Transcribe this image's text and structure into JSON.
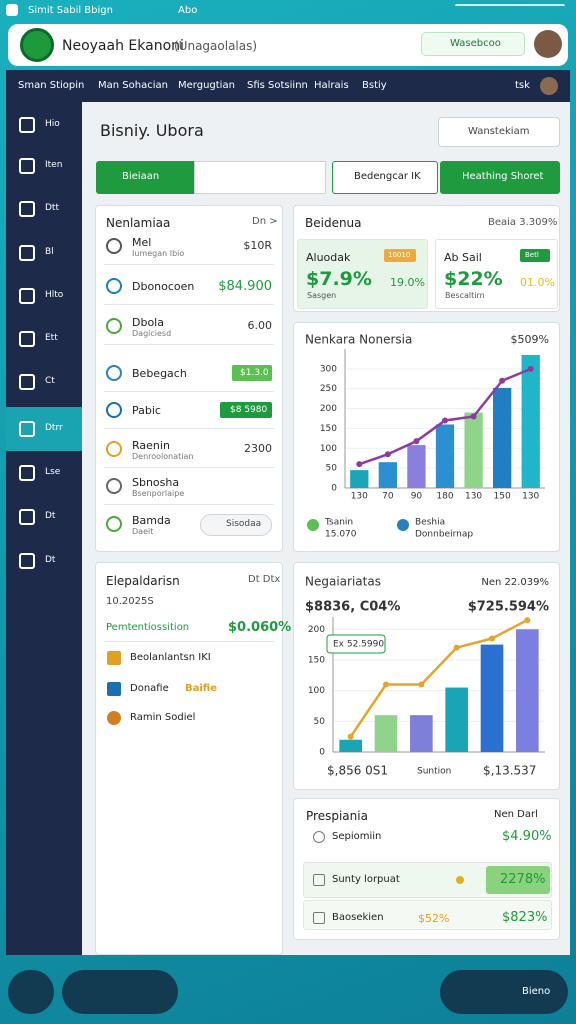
{
  "status_bar": {
    "left": "Simit Sabil Bbign",
    "mid": "Abo"
  },
  "header": {
    "title": "Neoyaah Ekanoni",
    "subtitle": "(Unagaolalas)",
    "search": "Wasebcoo"
  },
  "nav": {
    "items": [
      "Sman Stiopin",
      "Man Sohacian",
      "Mergugtian",
      "Sfis Sotsiinn",
      "Halrais",
      "Bstiy"
    ],
    "user": "tsk"
  },
  "sidebar": {
    "items": [
      "Hio",
      "Iten",
      "Dtt",
      "Bl",
      "Hlto",
      "Ett",
      "Ct",
      "Dtrr",
      "Lse",
      "Dt",
      "Dt"
    ]
  },
  "page": {
    "title": "Bisniy. Ubora",
    "search": "Wanstekiam"
  },
  "toolbar": {
    "primary": "Bieiaan",
    "filter": "Bedengcar IK",
    "action": "Heathing Shoret"
  },
  "list_card": {
    "title": "Nenlamiaa",
    "link": "Dn >",
    "items": [
      {
        "name": "Mel",
        "sub": "Iumegan Ibio",
        "value": "$10R"
      },
      {
        "name": "Dbonocoen",
        "value": "$84.900"
      },
      {
        "name": "Dbola",
        "sub": "Dagiciesd",
        "value": "6.00"
      },
      {
        "name": "Bebegach",
        "badge": "$1.3.0"
      },
      {
        "name": "Pabic",
        "badge": "$8 5980"
      },
      {
        "name": "Raenin",
        "sub": "Denroolonatian",
        "value": "2300"
      },
      {
        "name": "Sbnosha",
        "sub": "Bsenporlaipe"
      },
      {
        "name": "Bamda",
        "sub": "Daeit",
        "button": "Sisodaa"
      }
    ]
  },
  "stats": {
    "title": "Beidenua",
    "link": "Beaia 3.309%",
    "cards": [
      {
        "label": "Aluodak",
        "tag": "10010",
        "value": "$7.9%",
        "sub": "Sasgen",
        "change": "19.0%"
      },
      {
        "label": "Ab Sail",
        "tag": "Betl",
        "value": "$22%",
        "sub": "Bescaltirn",
        "change": "01.0%"
      }
    ]
  },
  "charts": [
    {
      "type": "bar",
      "title": "Nenkara Nonersia",
      "value": "$509%",
      "categories": [
        "130",
        "70",
        "90",
        "180",
        "130",
        "150",
        "130"
      ],
      "ylim": [
        0,
        350
      ],
      "yticks": [
        0,
        50,
        100,
        150,
        200,
        250,
        300
      ],
      "series": [
        {
          "type": "bar",
          "colors": [
            "#1aa6b7",
            "#2b8fd0",
            "#8a7fe0",
            "#2b8fd0",
            "#8fd48a",
            "#1f7fc0",
            "#21b5c8"
          ],
          "values": [
            45,
            65,
            108,
            160,
            190,
            252,
            335
          ]
        },
        {
          "type": "line",
          "color": "#8e3aa0",
          "values": [
            60,
            85,
            118,
            170,
            180,
            270,
            300
          ]
        }
      ],
      "legend": [
        {
          "name": "Tsanin",
          "value": "15.070",
          "color": "#5cbf55"
        },
        {
          "name": "Beshia",
          "value": "Donnbeirnap",
          "color": "#2a7fbf"
        }
      ]
    },
    {
      "type": "bar",
      "title": "Negaiariatas",
      "link": "Nen 22.039%",
      "left_value": "$8836, C04%",
      "right_value": "$725.594%",
      "callout": "Ex 52.5990",
      "ylim": [
        0,
        220
      ],
      "yticks": [
        0,
        50,
        100,
        150,
        200
      ],
      "series": [
        {
          "type": "bar",
          "colors": [
            "#19a5b5",
            "#8fd48a",
            "#7d7fd8",
            "#19a5b5",
            "#2b6fd0",
            "#7d7fe0"
          ],
          "values": [
            20,
            60,
            60,
            105,
            175,
            200
          ]
        },
        {
          "type": "line",
          "color": "#e3a52a",
          "values": [
            25,
            110,
            110,
            170,
            185,
            215
          ]
        }
      ],
      "footer": [
        "$,856 0S1",
        "Suntion",
        "$,13.537"
      ]
    }
  ],
  "detail_card": {
    "title": "Elepaldarisn",
    "link": "Dt Dtx",
    "date": "10.2025S",
    "highlight": {
      "label": "Pemtentiossition",
      "value": "$0.060%"
    },
    "items": [
      {
        "name": "Beolanlantsn IKI"
      },
      {
        "name": "Donafie",
        "tag": "Baifie"
      },
      {
        "name": "Ramin Sodiel"
      }
    ]
  },
  "summary_card": {
    "title": "Prespiania",
    "link": "Nen Darl",
    "rows": [
      {
        "label": "Sepiomiin",
        "value": "$4.90%"
      },
      {
        "label": "Sunty lorpuat",
        "value": "2278%"
      },
      {
        "label": "Baosekien",
        "mid": "$52%",
        "value": "$823%"
      }
    ]
  },
  "dock": {
    "label": "Bieno"
  }
}
